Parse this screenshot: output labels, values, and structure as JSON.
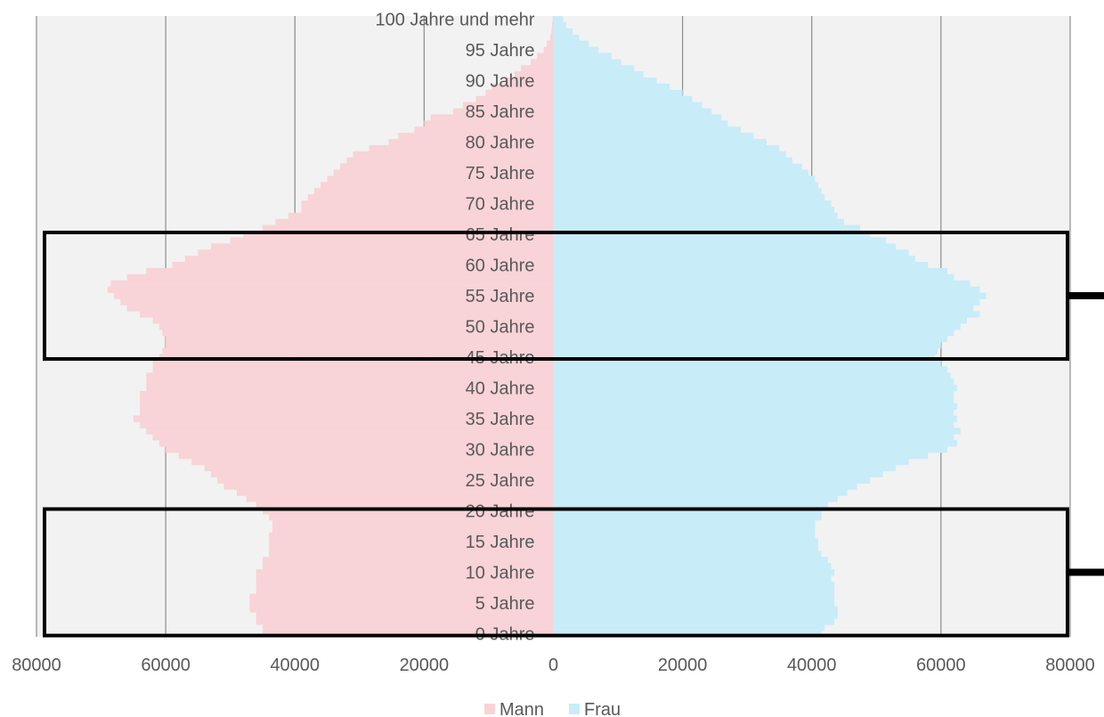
{
  "chart_data": {
    "type": "bar",
    "orientation": "horizontal",
    "title": "",
    "xlabel": "",
    "ylabel": "",
    "xlim": [
      -80000,
      80000
    ],
    "x_ticks": [
      "80000",
      "60000",
      "40000",
      "20000",
      "0",
      "20000",
      "40000",
      "60000",
      "80000"
    ],
    "age_labels": [
      {
        "age": 0,
        "label": "0 Jahre"
      },
      {
        "age": 5,
        "label": "5 Jahre"
      },
      {
        "age": 10,
        "label": "10 Jahre"
      },
      {
        "age": 15,
        "label": "15 Jahre"
      },
      {
        "age": 20,
        "label": "20 Jahre"
      },
      {
        "age": 25,
        "label": "25 Jahre"
      },
      {
        "age": 30,
        "label": "30 Jahre"
      },
      {
        "age": 35,
        "label": "35 Jahre"
      },
      {
        "age": 40,
        "label": "40 Jahre"
      },
      {
        "age": 45,
        "label": "45 Jahre"
      },
      {
        "age": 50,
        "label": "50 Jahre"
      },
      {
        "age": 55,
        "label": "55 Jahre"
      },
      {
        "age": 60,
        "label": "60 Jahre"
      },
      {
        "age": 65,
        "label": "65 Jahre"
      },
      {
        "age": 70,
        "label": "70 Jahre"
      },
      {
        "age": 75,
        "label": "75 Jahre"
      },
      {
        "age": 80,
        "label": "80 Jahre"
      },
      {
        "age": 85,
        "label": "85 Jahre"
      },
      {
        "age": 90,
        "label": "90 Jahre"
      },
      {
        "age": 95,
        "label": "95 Jahre"
      },
      {
        "age": 100,
        "label": "100 Jahre und mehr"
      }
    ],
    "ages": [
      0,
      1,
      2,
      3,
      4,
      5,
      6,
      7,
      8,
      9,
      10,
      11,
      12,
      13,
      14,
      15,
      16,
      17,
      18,
      19,
      20,
      21,
      22,
      23,
      24,
      25,
      26,
      27,
      28,
      29,
      30,
      31,
      32,
      33,
      34,
      35,
      36,
      37,
      38,
      39,
      40,
      41,
      42,
      43,
      44,
      45,
      46,
      47,
      48,
      49,
      50,
      51,
      52,
      53,
      54,
      55,
      56,
      57,
      58,
      59,
      60,
      61,
      62,
      63,
      64,
      65,
      66,
      67,
      68,
      69,
      70,
      71,
      72,
      73,
      74,
      75,
      76,
      77,
      78,
      79,
      80,
      81,
      82,
      83,
      84,
      85,
      86,
      87,
      88,
      89,
      90,
      91,
      92,
      93,
      94,
      95,
      96,
      97,
      98,
      99,
      100
    ],
    "series": [
      {
        "name": "Mann",
        "color": "#f8d3d7",
        "values": [
          45000,
          45000,
          46000,
          46000,
          47000,
          47000,
          47000,
          46000,
          46000,
          46000,
          46000,
          45000,
          45000,
          44000,
          44000,
          44000,
          44000,
          43500,
          43500,
          44000,
          45000,
          46000,
          47500,
          49000,
          51000,
          52000,
          53000,
          54000,
          56000,
          58000,
          60000,
          61000,
          62000,
          63000,
          64000,
          65000,
          64000,
          64000,
          64000,
          64000,
          63000,
          63000,
          63000,
          62000,
          62000,
          61000,
          60500,
          60000,
          60000,
          60500,
          61000,
          62000,
          64000,
          66000,
          67000,
          68000,
          69000,
          68500,
          66000,
          63000,
          59000,
          57000,
          55000,
          53000,
          50000,
          48000,
          45000,
          43000,
          41000,
          39000,
          39000,
          38000,
          37000,
          36000,
          35000,
          34000,
          33000,
          32000,
          31000,
          28500,
          25500,
          24000,
          21500,
          20000,
          19000,
          15500,
          14000,
          12000,
          10500,
          9500,
          7500,
          6000,
          5000,
          3500,
          2500,
          1500,
          1000,
          500,
          300,
          200,
          100
        ]
      },
      {
        "name": "Frau",
        "color": "#c8ecf8",
        "values": [
          41500,
          42000,
          43500,
          44000,
          44000,
          43500,
          43500,
          43500,
          43500,
          43000,
          43500,
          43000,
          42500,
          41500,
          41000,
          41000,
          40500,
          40500,
          40500,
          41500,
          41500,
          42500,
          44000,
          45500,
          47000,
          49000,
          51000,
          53000,
          55000,
          58000,
          61000,
          62500,
          62000,
          63000,
          62000,
          62500,
          62000,
          62500,
          62000,
          62000,
          62500,
          62000,
          61500,
          61000,
          60000,
          59000,
          59500,
          60000,
          61000,
          62000,
          63000,
          64000,
          66000,
          65000,
          66000,
          67000,
          66000,
          64500,
          62000,
          61000,
          58000,
          56000,
          55000,
          53000,
          51500,
          49000,
          47500,
          45000,
          44000,
          43500,
          43000,
          42000,
          41500,
          41000,
          40500,
          39500,
          38500,
          37000,
          36000,
          35000,
          33000,
          31000,
          29000,
          27000,
          26000,
          24500,
          23000,
          21500,
          20000,
          18000,
          16000,
          14000,
          12500,
          10500,
          9000,
          7000,
          5500,
          4000,
          3000,
          2000,
          1500
        ]
      }
    ],
    "legend": {
      "position": "bottom-center"
    },
    "grid": true,
    "background": "#f2f2f2",
    "annotations": [
      {
        "type": "highlight-box",
        "age_range": [
          45,
          65
        ]
      },
      {
        "type": "highlight-box",
        "age_range": [
          0,
          20
        ]
      }
    ]
  },
  "legend_labels": {
    "mann": "Mann",
    "frau": "Frau"
  }
}
